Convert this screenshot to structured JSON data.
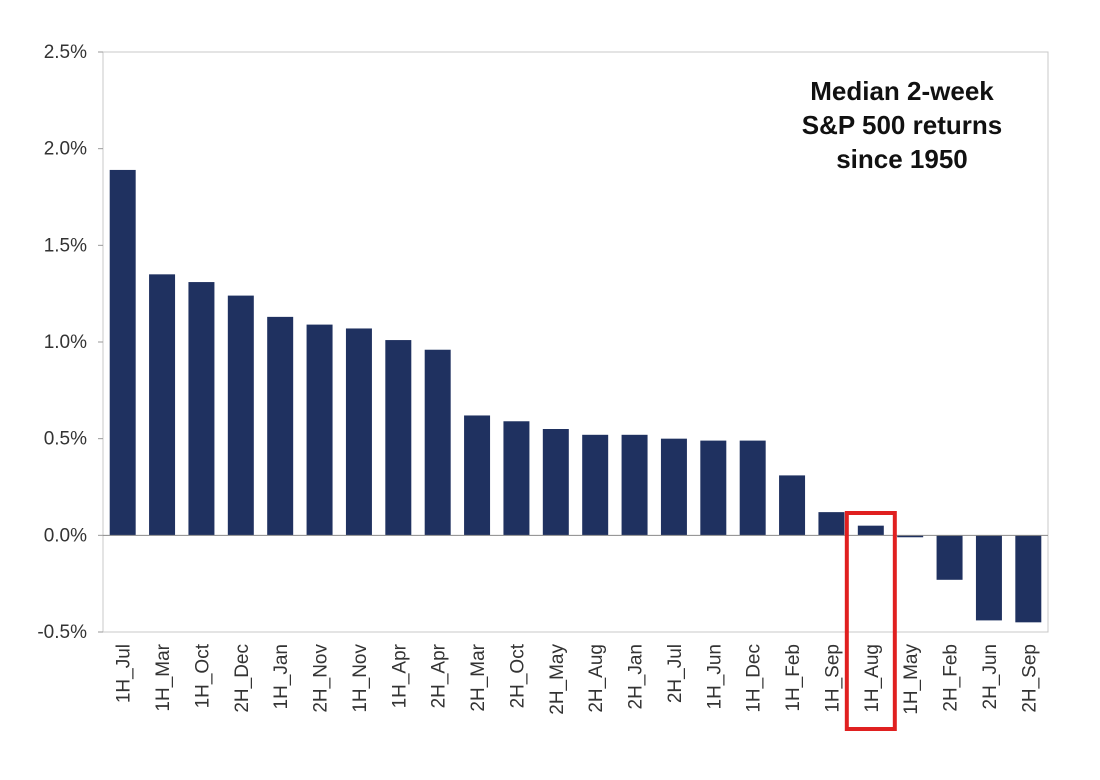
{
  "chart_data": {
    "type": "bar",
    "title_lines": [
      "Median 2-week",
      "S&P 500 returns",
      "since 1950"
    ],
    "xlabel": "",
    "ylabel": "",
    "ylim": [
      -0.5,
      2.5
    ],
    "y_ticks": [
      -0.5,
      0.0,
      0.5,
      1.0,
      1.5,
      2.0,
      2.5
    ],
    "y_tick_labels": [
      "-0.5%",
      "0.0%",
      "0.5%",
      "1.0%",
      "1.5%",
      "2.0%",
      "2.5%"
    ],
    "grid": false,
    "bar_color": "#1f3160",
    "categories": [
      "1H_Jul",
      "1H_Mar",
      "1H_Oct",
      "2H_Dec",
      "1H_Jan",
      "2H_Nov",
      "1H_Nov",
      "1H_Apr",
      "2H_Apr",
      "2H_Mar",
      "2H_Oct",
      "2H_May",
      "2H_Aug",
      "2H_Jan",
      "2H_Jul",
      "1H_Jun",
      "1H_Dec",
      "1H_Feb",
      "1H_Sep",
      "1H_Aug",
      "1H_May",
      "2H_Feb",
      "2H_Jun",
      "2H_Sep"
    ],
    "values": [
      1.89,
      1.35,
      1.31,
      1.24,
      1.13,
      1.09,
      1.07,
      1.01,
      0.96,
      0.62,
      0.59,
      0.55,
      0.52,
      0.52,
      0.5,
      0.49,
      0.49,
      0.31,
      0.12,
      0.05,
      -0.01,
      -0.23,
      -0.44,
      -0.45
    ],
    "highlight": {
      "category": "1H_Aug",
      "color": "#e02020"
    }
  }
}
